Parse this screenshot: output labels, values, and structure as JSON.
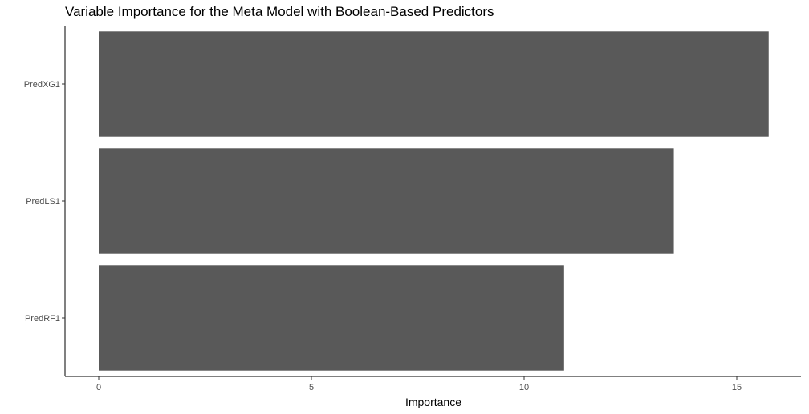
{
  "chart_data": {
    "type": "bar",
    "orientation": "horizontal",
    "title": "Variable Importance for the Meta Model with Boolean-Based Predictors",
    "xlabel": "Importance",
    "ylabel": "",
    "categories": [
      "PredXG1",
      "PredLS1",
      "PredRF1"
    ],
    "values": [
      15.75,
      13.52,
      10.94
    ],
    "xlim": [
      0,
      16
    ],
    "xticks": [
      0,
      5,
      10,
      15
    ],
    "grid": false,
    "legend": "none",
    "bar_color": "#595959"
  }
}
